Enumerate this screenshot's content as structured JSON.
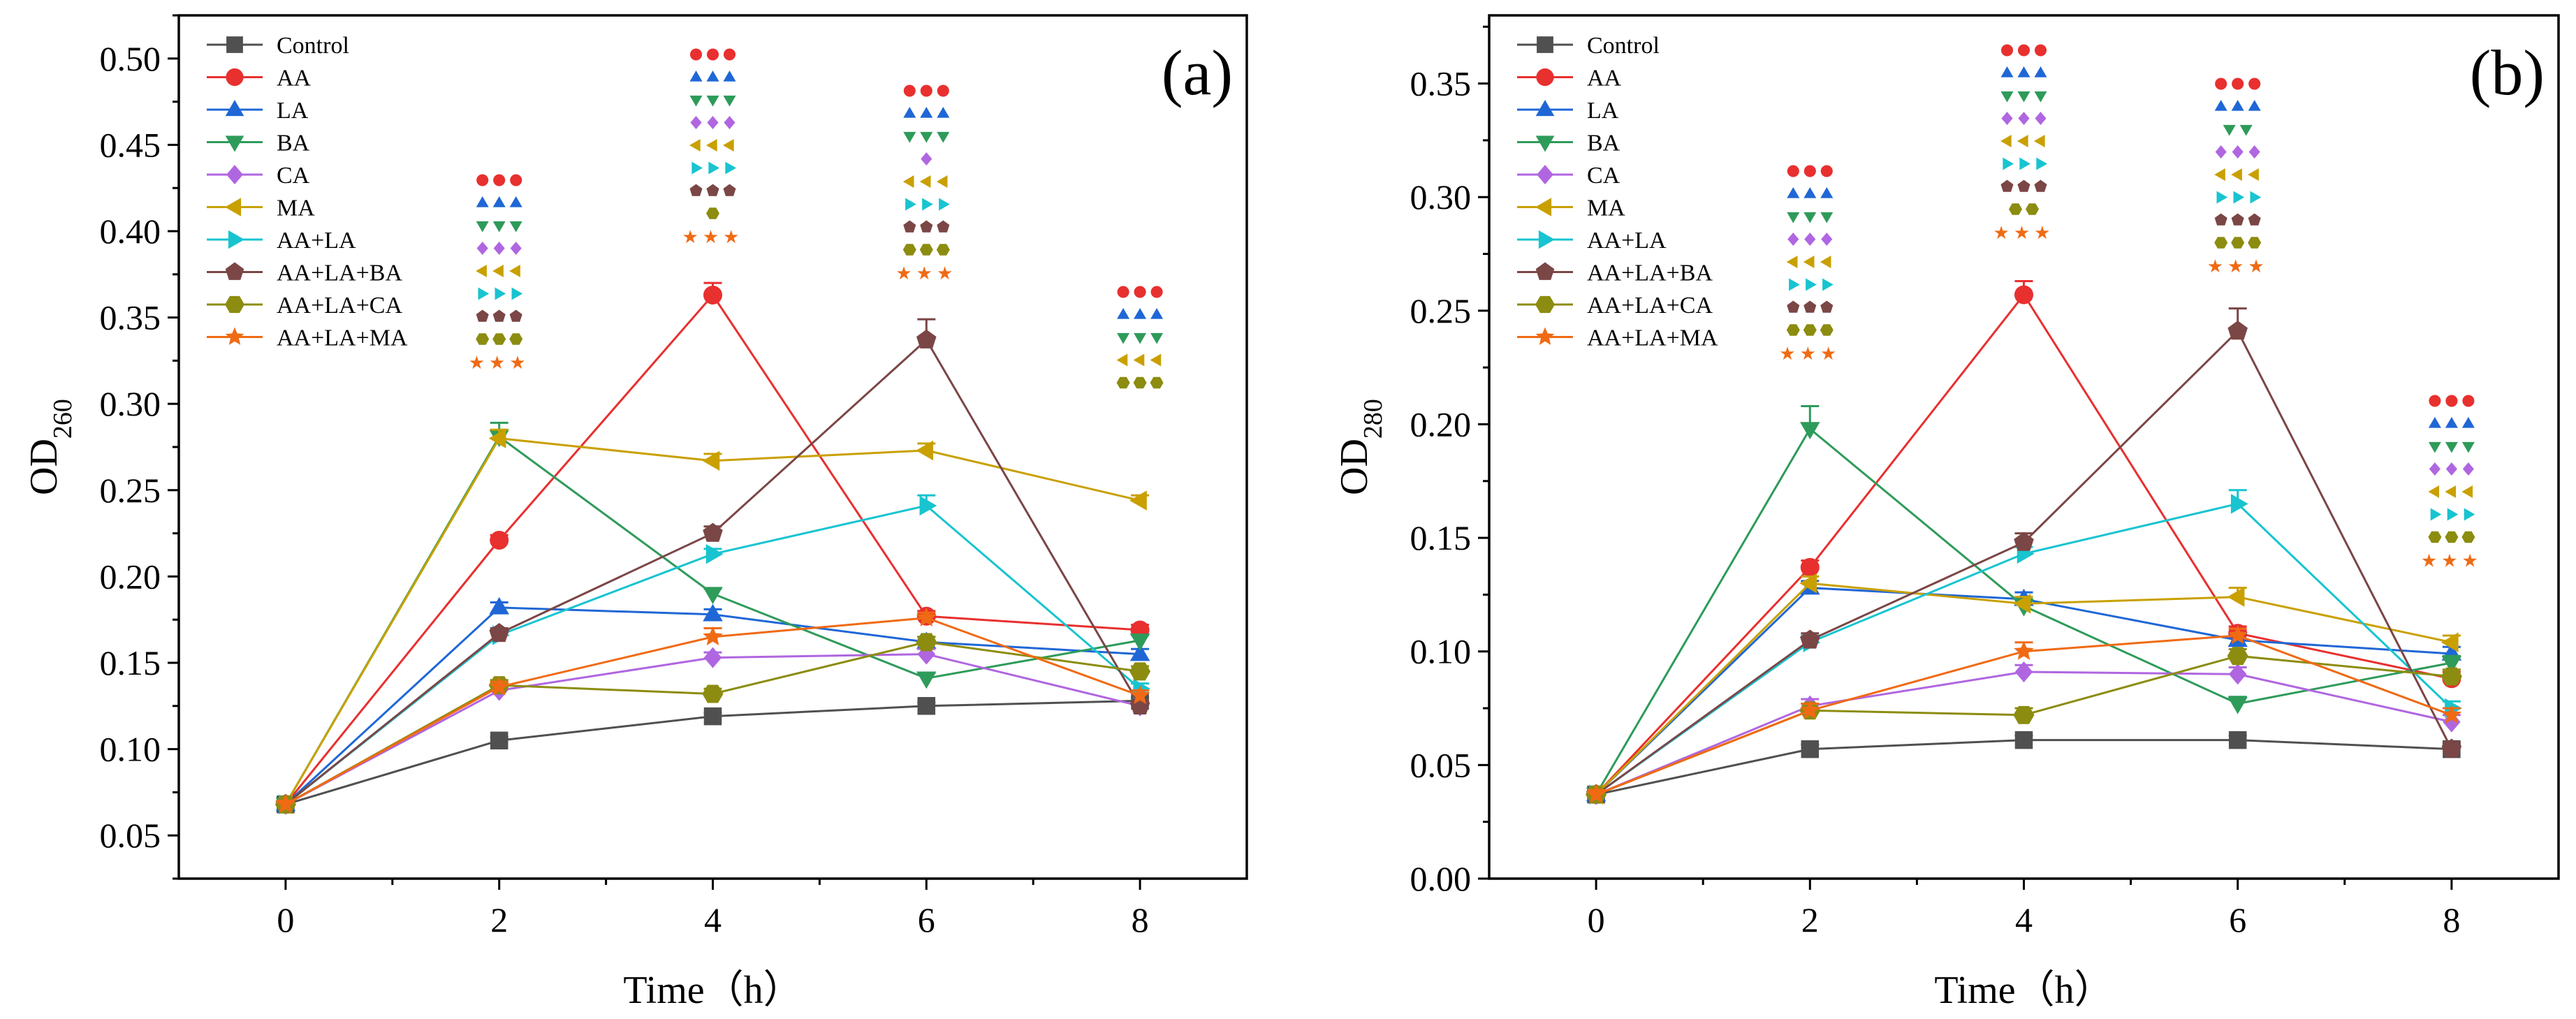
{
  "chart_data": [
    {
      "type": "line",
      "panel_label": "(a)",
      "xlabel": "Time（h）",
      "ylabel": "OD",
      "ylabel_sub": "260",
      "x": [
        0,
        2,
        4,
        6,
        8
      ],
      "x_ticks": [
        "0",
        "2",
        "4",
        "6",
        "8"
      ],
      "xlim": [
        -1,
        9
      ],
      "ylim": [
        0.025,
        0.525
      ],
      "y_ticks": [
        "0.05",
        "0.10",
        "0.15",
        "0.20",
        "0.25",
        "0.30",
        "0.35",
        "0.40",
        "0.45",
        "0.50"
      ],
      "legend_position": "top-left",
      "series": [
        {
          "name": "Control",
          "values": [
            0.068,
            0.105,
            0.119,
            0.125,
            0.128
          ],
          "errors": [
            0.002,
            0.002,
            0.002,
            0.002,
            0.002
          ]
        },
        {
          "name": "AA",
          "values": [
            0.068,
            0.221,
            0.363,
            0.177,
            0.169
          ],
          "errors": [
            0.002,
            0.003,
            0.007,
            0.003,
            0.003
          ]
        },
        {
          "name": "LA",
          "values": [
            0.068,
            0.182,
            0.178,
            0.162,
            0.155
          ],
          "errors": [
            0.002,
            0.003,
            0.003,
            0.003,
            0.003
          ]
        },
        {
          "name": "BA",
          "values": [
            0.068,
            0.281,
            0.19,
            0.141,
            0.163
          ],
          "errors": [
            0.002,
            0.008,
            0.003,
            0.003,
            0.003
          ]
        },
        {
          "name": "CA",
          "values": [
            0.068,
            0.134,
            0.153,
            0.155,
            0.125
          ],
          "errors": [
            0.002,
            0.003,
            0.003,
            0.003,
            0.003
          ]
        },
        {
          "name": "MA",
          "values": [
            0.068,
            0.28,
            0.267,
            0.273,
            0.244
          ],
          "errors": [
            0.002,
            0.005,
            0.004,
            0.004,
            0.003
          ]
        },
        {
          "name": "AA+LA",
          "values": [
            0.068,
            0.166,
            0.213,
            0.241,
            0.135
          ],
          "errors": [
            0.002,
            0.003,
            0.003,
            0.006,
            0.003
          ]
        },
        {
          "name": "AA+LA+BA",
          "values": [
            0.068,
            0.167,
            0.225,
            0.337,
            0.125
          ],
          "errors": [
            0.002,
            0.003,
            0.004,
            0.012,
            0.003
          ]
        },
        {
          "name": "AA+LA+CA",
          "values": [
            0.068,
            0.137,
            0.132,
            0.162,
            0.145
          ],
          "errors": [
            0.002,
            0.003,
            0.003,
            0.003,
            0.003
          ]
        },
        {
          "name": "AA+LA+MA",
          "values": [
            0.068,
            0.136,
            0.165,
            0.176,
            0.131
          ],
          "errors": [
            0.002,
            0.003,
            0.005,
            0.003,
            0.003
          ]
        }
      ],
      "significance": {
        "stars": "★★★",
        "columns": [
          {
            "x": 2,
            "series": [
              "AA",
              "LA",
              "BA",
              "CA",
              "MA",
              "AA+LA",
              "AA+LA+BA",
              "AA+LA+CA",
              "AA+LA+MA"
            ],
            "counts": [
              3,
              3,
              3,
              3,
              3,
              3,
              3,
              3,
              3
            ]
          },
          {
            "x": 4,
            "series": [
              "AA",
              "LA",
              "BA",
              "CA",
              "MA",
              "AA+LA",
              "AA+LA+BA",
              "AA+LA+CA",
              "AA+LA+MA"
            ],
            "counts": [
              3,
              3,
              3,
              3,
              3,
              3,
              3,
              1,
              3
            ]
          },
          {
            "x": 6,
            "series": [
              "AA",
              "LA",
              "BA",
              "CA",
              "MA",
              "AA+LA",
              "AA+LA+BA",
              "AA+LA+CA",
              "AA+LA+MA"
            ],
            "counts": [
              3,
              3,
              3,
              1,
              3,
              3,
              3,
              3,
              3
            ]
          },
          {
            "x": 8,
            "series": [
              "AA",
              "LA",
              "BA",
              "MA",
              "AA+LA+CA"
            ],
            "counts": [
              3,
              3,
              3,
              3,
              3
            ]
          }
        ]
      }
    },
    {
      "type": "line",
      "panel_label": "(b)",
      "xlabel": "Time（h）",
      "ylabel": "OD",
      "ylabel_sub": "280",
      "x": [
        0,
        2,
        4,
        6,
        8
      ],
      "x_ticks": [
        "0",
        "2",
        "4",
        "6",
        "8"
      ],
      "xlim": [
        -1,
        9
      ],
      "ylim": [
        0.0,
        0.38
      ],
      "y_ticks": [
        "0.00",
        "0.05",
        "0.10",
        "0.15",
        "0.20",
        "0.25",
        "0.30",
        "0.35"
      ],
      "legend_position": "top-left",
      "series": [
        {
          "name": "Control",
          "values": [
            0.037,
            0.057,
            0.061,
            0.061,
            0.057
          ],
          "errors": [
            0.002,
            0.002,
            0.002,
            0.002,
            0.002
          ]
        },
        {
          "name": "AA",
          "values": [
            0.037,
            0.137,
            0.257,
            0.108,
            0.088
          ],
          "errors": [
            0.002,
            0.003,
            0.006,
            0.003,
            0.003
          ]
        },
        {
          "name": "LA",
          "values": [
            0.037,
            0.128,
            0.123,
            0.105,
            0.099
          ],
          "errors": [
            0.002,
            0.003,
            0.003,
            0.003,
            0.003
          ]
        },
        {
          "name": "BA",
          "values": [
            0.037,
            0.198,
            0.12,
            0.077,
            0.095
          ],
          "errors": [
            0.002,
            0.01,
            0.003,
            0.003,
            0.003
          ]
        },
        {
          "name": "CA",
          "values": [
            0.037,
            0.076,
            0.091,
            0.09,
            0.069
          ],
          "errors": [
            0.002,
            0.003,
            0.003,
            0.003,
            0.003
          ]
        },
        {
          "name": "MA",
          "values": [
            0.037,
            0.13,
            0.121,
            0.124,
            0.104
          ],
          "errors": [
            0.002,
            0.003,
            0.003,
            0.004,
            0.003
          ]
        },
        {
          "name": "AA+LA",
          "values": [
            0.037,
            0.104,
            0.143,
            0.165,
            0.075
          ],
          "errors": [
            0.002,
            0.003,
            0.003,
            0.006,
            0.003
          ]
        },
        {
          "name": "AA+LA+BA",
          "values": [
            0.037,
            0.105,
            0.148,
            0.241,
            0.057
          ],
          "errors": [
            0.002,
            0.003,
            0.004,
            0.01,
            0.003
          ]
        },
        {
          "name": "AA+LA+CA",
          "values": [
            0.037,
            0.074,
            0.072,
            0.098,
            0.089
          ],
          "errors": [
            0.002,
            0.003,
            0.003,
            0.003,
            0.003
          ]
        },
        {
          "name": "AA+LA+MA",
          "values": [
            0.037,
            0.074,
            0.1,
            0.107,
            0.072
          ],
          "errors": [
            0.002,
            0.003,
            0.004,
            0.003,
            0.003
          ]
        }
      ],
      "significance": {
        "stars": "★★★",
        "columns": [
          {
            "x": 2,
            "series": [
              "AA",
              "LA",
              "BA",
              "CA",
              "MA",
              "AA+LA",
              "AA+LA+BA",
              "AA+LA+CA",
              "AA+LA+MA"
            ],
            "counts": [
              3,
              3,
              3,
              3,
              3,
              3,
              3,
              3,
              3
            ]
          },
          {
            "x": 4,
            "series": [
              "AA",
              "LA",
              "BA",
              "CA",
              "MA",
              "AA+LA",
              "AA+LA+BA",
              "AA+LA+CA",
              "AA+LA+MA"
            ],
            "counts": [
              3,
              3,
              3,
              3,
              3,
              3,
              3,
              2,
              3
            ]
          },
          {
            "x": 6,
            "series": [
              "AA",
              "LA",
              "BA",
              "CA",
              "MA",
              "AA+LA",
              "AA+LA+BA",
              "AA+LA+CA",
              "AA+LA+MA"
            ],
            "counts": [
              3,
              3,
              2,
              3,
              3,
              3,
              3,
              3,
              3
            ]
          },
          {
            "x": 8,
            "series": [
              "AA",
              "LA",
              "BA",
              "CA",
              "MA",
              "AA+LA",
              "AA+LA+CA",
              "AA+LA+MA"
            ],
            "counts": [
              3,
              3,
              3,
              3,
              3,
              3,
              3,
              3
            ]
          }
        ]
      }
    }
  ],
  "series_styles": [
    {
      "name": "Control",
      "color": "#505050",
      "marker": "square"
    },
    {
      "name": "AA",
      "color": "#e8302f",
      "marker": "circle"
    },
    {
      "name": "LA",
      "color": "#1f67d6",
      "marker": "triangle-up"
    },
    {
      "name": "BA",
      "color": "#2e9b5a",
      "marker": "triangle-down"
    },
    {
      "name": "CA",
      "color": "#b066e0",
      "marker": "diamond"
    },
    {
      "name": "MA",
      "color": "#c9a000",
      "marker": "triangle-left"
    },
    {
      "name": "AA+LA",
      "color": "#18c4d0",
      "marker": "triangle-right"
    },
    {
      "name": "AA+LA+BA",
      "color": "#7b4646",
      "marker": "pentagon"
    },
    {
      "name": "AA+LA+CA",
      "color": "#8c8c10",
      "marker": "hexagon"
    },
    {
      "name": "AA+LA+MA",
      "color": "#f06a14",
      "marker": "star"
    }
  ]
}
